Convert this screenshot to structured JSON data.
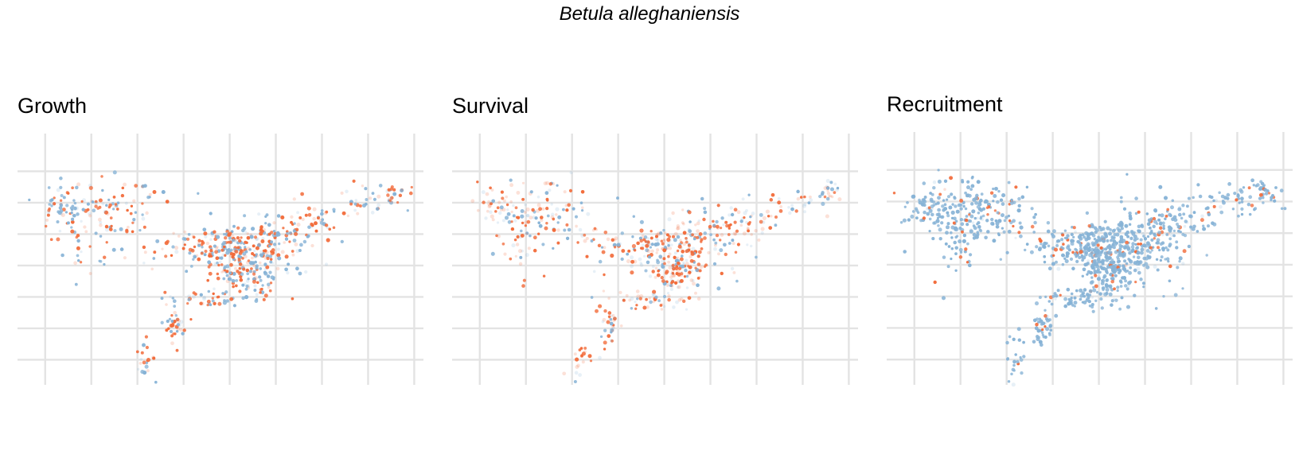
{
  "figure": {
    "title": "Betula alleghaniensis"
  },
  "colors": {
    "low": "#f26b3a",
    "high": "#87b3d6",
    "grid": "#e3e3e3"
  },
  "chart_data": [
    {
      "type": "scatter",
      "title": "Growth",
      "xlabel": "",
      "ylabel": "",
      "tick_labels": "none",
      "grid": true,
      "legend": "none",
      "xlim": [
        -98,
        -54
      ],
      "ylim": [
        33,
        53
      ],
      "mix_high_fraction": 0.45,
      "faint_fraction": 0.25,
      "clusters": [
        {
          "lon": -88.5,
          "lat": 46.8,
          "sx": 3.0,
          "sy": 1.2,
          "n": 110
        },
        {
          "lon": -93.5,
          "lat": 47.3,
          "sx": 1.3,
          "sy": 0.9,
          "n": 35
        },
        {
          "lon": -90.5,
          "lat": 44.2,
          "sx": 1.5,
          "sy": 1.5,
          "n": 25
        },
        {
          "lon": -76.0,
          "lat": 44.0,
          "sx": 3.5,
          "sy": 0.9,
          "n": 170
        },
        {
          "lon": -71.5,
          "lat": 44.0,
          "sx": 2.2,
          "sy": 1.6,
          "n": 110
        },
        {
          "lon": -66.5,
          "lat": 45.7,
          "sx": 2.0,
          "sy": 0.9,
          "n": 55
        },
        {
          "lon": -60.5,
          "lat": 47.6,
          "sx": 2.0,
          "sy": 0.6,
          "n": 30
        },
        {
          "lon": -57.0,
          "lat": 48.3,
          "sx": 0.8,
          "sy": 0.4,
          "n": 20
        },
        {
          "lon": -74.5,
          "lat": 42.0,
          "sx": 1.2,
          "sy": 0.9,
          "n": 60
        },
        {
          "lon": -71.8,
          "lat": 41.5,
          "sx": 1.0,
          "sy": 1.2,
          "n": 40
        },
        {
          "lon": -77.5,
          "lat": 39.8,
          "sx": 2.2,
          "sy": 0.4,
          "n": 45
        },
        {
          "lon": -81.0,
          "lat": 37.7,
          "sx": 0.6,
          "sy": 0.8,
          "n": 35
        },
        {
          "lon": -84.0,
          "lat": 35.0,
          "sx": 0.6,
          "sy": 0.9,
          "n": 20
        }
      ]
    },
    {
      "type": "scatter",
      "title": "Survival",
      "xlabel": "",
      "ylabel": "",
      "tick_labels": "none",
      "grid": true,
      "legend": "none",
      "xlim": [
        -98,
        -54
      ],
      "ylim": [
        33,
        53
      ],
      "mix_high_fraction": 0.4,
      "faint_fraction": 0.45,
      "clusters": [
        {
          "lon": -88.5,
          "lat": 46.8,
          "sx": 3.0,
          "sy": 1.3,
          "n": 110
        },
        {
          "lon": -93.5,
          "lat": 47.3,
          "sx": 1.3,
          "sy": 0.9,
          "n": 30
        },
        {
          "lon": -90.5,
          "lat": 44.2,
          "sx": 1.5,
          "sy": 1.5,
          "n": 25
        },
        {
          "lon": -76.0,
          "lat": 44.0,
          "sx": 3.5,
          "sy": 0.9,
          "n": 160
        },
        {
          "lon": -71.5,
          "lat": 43.5,
          "sx": 2.2,
          "sy": 1.8,
          "n": 110
        },
        {
          "lon": -66.5,
          "lat": 45.7,
          "sx": 2.0,
          "sy": 0.9,
          "n": 50
        },
        {
          "lon": -60.5,
          "lat": 47.6,
          "sx": 2.0,
          "sy": 0.6,
          "n": 30
        },
        {
          "lon": -57.0,
          "lat": 48.3,
          "sx": 0.8,
          "sy": 0.4,
          "n": 20
        },
        {
          "lon": -74.0,
          "lat": 41.7,
          "sx": 1.3,
          "sy": 1.0,
          "n": 70
        },
        {
          "lon": -77.5,
          "lat": 39.8,
          "sx": 2.2,
          "sy": 0.4,
          "n": 40
        },
        {
          "lon": -81.0,
          "lat": 37.7,
          "sx": 0.6,
          "sy": 0.8,
          "n": 30
        },
        {
          "lon": -84.0,
          "lat": 35.0,
          "sx": 0.6,
          "sy": 0.9,
          "n": 18
        }
      ]
    },
    {
      "type": "scatter",
      "title": "Recruitment",
      "xlabel": "",
      "ylabel": "",
      "tick_labels": "none",
      "grid": true,
      "legend": "none",
      "xlim": [
        -98,
        -54
      ],
      "ylim": [
        33,
        53
      ],
      "mix_high_fraction": 0.9,
      "faint_fraction": 0.05,
      "clusters": [
        {
          "lon": -88.5,
          "lat": 46.8,
          "sx": 3.0,
          "sy": 1.3,
          "n": 180
        },
        {
          "lon": -93.5,
          "lat": 47.3,
          "sx": 1.3,
          "sy": 0.9,
          "n": 50
        },
        {
          "lon": -90.5,
          "lat": 44.2,
          "sx": 1.5,
          "sy": 1.6,
          "n": 40
        },
        {
          "lon": -76.0,
          "lat": 44.1,
          "sx": 3.5,
          "sy": 0.9,
          "n": 280
        },
        {
          "lon": -71.0,
          "lat": 43.5,
          "sx": 2.4,
          "sy": 1.8,
          "n": 180
        },
        {
          "lon": -66.5,
          "lat": 45.7,
          "sx": 2.0,
          "sy": 1.0,
          "n": 80
        },
        {
          "lon": -60.5,
          "lat": 47.6,
          "sx": 2.0,
          "sy": 0.6,
          "n": 45
        },
        {
          "lon": -57.0,
          "lat": 48.3,
          "sx": 0.8,
          "sy": 0.4,
          "n": 30
        },
        {
          "lon": -74.0,
          "lat": 41.8,
          "sx": 1.2,
          "sy": 1.0,
          "n": 110
        },
        {
          "lon": -77.5,
          "lat": 39.8,
          "sx": 2.2,
          "sy": 0.4,
          "n": 60
        },
        {
          "lon": -81.0,
          "lat": 37.7,
          "sx": 0.6,
          "sy": 0.8,
          "n": 40
        },
        {
          "lon": -84.0,
          "lat": 35.0,
          "sx": 0.6,
          "sy": 0.9,
          "n": 22
        }
      ]
    }
  ]
}
